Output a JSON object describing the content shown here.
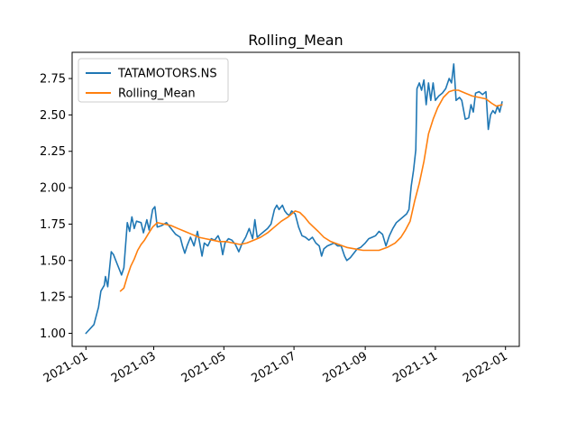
{
  "chart_data": {
    "type": "line",
    "title": "Rolling_Mean",
    "xlabel": "",
    "ylabel": "",
    "xlim": [
      "2020-12-20",
      "2022-01-13"
    ],
    "ylim": [
      0.91,
      2.93
    ],
    "x_ticks": [
      {
        "date": "2021-01-01",
        "label": "2021-01"
      },
      {
        "date": "2021-03-01",
        "label": "2021-03"
      },
      {
        "date": "2021-05-01",
        "label": "2021-05"
      },
      {
        "date": "2021-07-01",
        "label": "2021-07"
      },
      {
        "date": "2021-09-01",
        "label": "2021-09"
      },
      {
        "date": "2021-11-01",
        "label": "2021-11"
      },
      {
        "date": "2022-01-01",
        "label": "2022-01"
      }
    ],
    "y_ticks": [
      {
        "value": 1.0,
        "label": "1.00"
      },
      {
        "value": 1.25,
        "label": "1.25"
      },
      {
        "value": 1.5,
        "label": "1.50"
      },
      {
        "value": 1.75,
        "label": "1.75"
      },
      {
        "value": 2.0,
        "label": "2.00"
      },
      {
        "value": 2.25,
        "label": "2.25"
      },
      {
        "value": 2.5,
        "label": "2.50"
      },
      {
        "value": 2.75,
        "label": "2.75"
      }
    ],
    "grid": false,
    "legend_position": "upper-left",
    "series": [
      {
        "name": "TATAMOTORS.NS",
        "color": "#1f77b4",
        "points": [
          [
            "2021-01-01",
            1.0
          ],
          [
            "2021-01-08",
            1.06
          ],
          [
            "2021-01-12",
            1.18
          ],
          [
            "2021-01-14",
            1.29
          ],
          [
            "2021-01-17",
            1.33
          ],
          [
            "2021-01-18",
            1.39
          ],
          [
            "2021-01-20",
            1.32
          ],
          [
            "2021-01-23",
            1.56
          ],
          [
            "2021-01-25",
            1.54
          ],
          [
            "2021-01-28",
            1.48
          ],
          [
            "2021-01-31",
            1.42
          ],
          [
            "2021-02-01",
            1.4
          ],
          [
            "2021-02-03",
            1.45
          ],
          [
            "2021-02-06",
            1.76
          ],
          [
            "2021-02-08",
            1.7
          ],
          [
            "2021-02-10",
            1.8
          ],
          [
            "2021-02-12",
            1.72
          ],
          [
            "2021-02-14",
            1.77
          ],
          [
            "2021-02-18",
            1.76
          ],
          [
            "2021-02-20",
            1.69
          ],
          [
            "2021-02-23",
            1.78
          ],
          [
            "2021-02-25",
            1.71
          ],
          [
            "2021-02-28",
            1.85
          ],
          [
            "2021-03-02",
            1.87
          ],
          [
            "2021-03-04",
            1.73
          ],
          [
            "2021-03-08",
            1.74
          ],
          [
            "2021-03-12",
            1.76
          ],
          [
            "2021-03-16",
            1.72
          ],
          [
            "2021-03-20",
            1.68
          ],
          [
            "2021-03-24",
            1.66
          ],
          [
            "2021-03-26",
            1.6
          ],
          [
            "2021-03-28",
            1.55
          ],
          [
            "2021-03-30",
            1.6
          ],
          [
            "2021-04-02",
            1.66
          ],
          [
            "2021-04-05",
            1.6
          ],
          [
            "2021-04-08",
            1.7
          ],
          [
            "2021-04-10",
            1.62
          ],
          [
            "2021-04-12",
            1.53
          ],
          [
            "2021-04-14",
            1.62
          ],
          [
            "2021-04-17",
            1.6
          ],
          [
            "2021-04-20",
            1.65
          ],
          [
            "2021-04-23",
            1.64
          ],
          [
            "2021-04-26",
            1.67
          ],
          [
            "2021-04-28",
            1.63
          ],
          [
            "2021-04-30",
            1.54
          ],
          [
            "2021-05-02",
            1.62
          ],
          [
            "2021-05-05",
            1.65
          ],
          [
            "2021-05-08",
            1.64
          ],
          [
            "2021-05-11",
            1.61
          ],
          [
            "2021-05-14",
            1.56
          ],
          [
            "2021-05-17",
            1.62
          ],
          [
            "2021-05-20",
            1.66
          ],
          [
            "2021-05-23",
            1.72
          ],
          [
            "2021-05-26",
            1.65
          ],
          [
            "2021-05-28",
            1.78
          ],
          [
            "2021-05-30",
            1.66
          ],
          [
            "2021-06-02",
            1.68
          ],
          [
            "2021-06-05",
            1.7
          ],
          [
            "2021-06-08",
            1.72
          ],
          [
            "2021-06-11",
            1.75
          ],
          [
            "2021-06-14",
            1.85
          ],
          [
            "2021-06-16",
            1.88
          ],
          [
            "2021-06-18",
            1.85
          ],
          [
            "2021-06-21",
            1.88
          ],
          [
            "2021-06-23",
            1.84
          ],
          [
            "2021-06-25",
            1.82
          ],
          [
            "2021-06-27",
            1.81
          ],
          [
            "2021-06-29",
            1.84
          ],
          [
            "2021-07-02",
            1.82
          ],
          [
            "2021-07-05",
            1.73
          ],
          [
            "2021-07-08",
            1.67
          ],
          [
            "2021-07-11",
            1.66
          ],
          [
            "2021-07-14",
            1.64
          ],
          [
            "2021-07-17",
            1.66
          ],
          [
            "2021-07-20",
            1.62
          ],
          [
            "2021-07-23",
            1.6
          ],
          [
            "2021-07-25",
            1.53
          ],
          [
            "2021-07-27",
            1.58
          ],
          [
            "2021-07-30",
            1.6
          ],
          [
            "2021-08-02",
            1.61
          ],
          [
            "2021-08-05",
            1.62
          ],
          [
            "2021-08-08",
            1.6
          ],
          [
            "2021-08-11",
            1.6
          ],
          [
            "2021-08-14",
            1.53
          ],
          [
            "2021-08-16",
            1.5
          ],
          [
            "2021-08-19",
            1.52
          ],
          [
            "2021-08-22",
            1.55
          ],
          [
            "2021-08-25",
            1.58
          ],
          [
            "2021-08-28",
            1.59
          ],
          [
            "2021-09-01",
            1.62
          ],
          [
            "2021-09-04",
            1.65
          ],
          [
            "2021-09-07",
            1.66
          ],
          [
            "2021-09-10",
            1.67
          ],
          [
            "2021-09-13",
            1.7
          ],
          [
            "2021-09-16",
            1.68
          ],
          [
            "2021-09-19",
            1.6
          ],
          [
            "2021-09-22",
            1.67
          ],
          [
            "2021-09-25",
            1.72
          ],
          [
            "2021-09-28",
            1.76
          ],
          [
            "2021-10-01",
            1.78
          ],
          [
            "2021-10-04",
            1.8
          ],
          [
            "2021-10-07",
            1.82
          ],
          [
            "2021-10-09",
            1.85
          ],
          [
            "2021-10-11",
            2.01
          ],
          [
            "2021-10-13",
            2.12
          ],
          [
            "2021-10-15",
            2.26
          ],
          [
            "2021-10-16",
            2.68
          ],
          [
            "2021-10-18",
            2.72
          ],
          [
            "2021-10-20",
            2.67
          ],
          [
            "2021-10-22",
            2.74
          ],
          [
            "2021-10-24",
            2.57
          ],
          [
            "2021-10-26",
            2.72
          ],
          [
            "2021-10-28",
            2.6
          ],
          [
            "2021-10-30",
            2.72
          ],
          [
            "2021-11-01",
            2.6
          ],
          [
            "2021-11-04",
            2.63
          ],
          [
            "2021-11-07",
            2.65
          ],
          [
            "2021-11-10",
            2.68
          ],
          [
            "2021-11-13",
            2.75
          ],
          [
            "2021-11-15",
            2.72
          ],
          [
            "2021-11-17",
            2.85
          ],
          [
            "2021-11-19",
            2.6
          ],
          [
            "2021-11-22",
            2.62
          ],
          [
            "2021-11-24",
            2.6
          ],
          [
            "2021-11-27",
            2.47
          ],
          [
            "2021-11-30",
            2.48
          ],
          [
            "2021-12-02",
            2.57
          ],
          [
            "2021-12-04",
            2.52
          ],
          [
            "2021-12-06",
            2.65
          ],
          [
            "2021-12-09",
            2.66
          ],
          [
            "2021-12-12",
            2.64
          ],
          [
            "2021-12-15",
            2.66
          ],
          [
            "2021-12-17",
            2.4
          ],
          [
            "2021-12-19",
            2.5
          ],
          [
            "2021-12-21",
            2.53
          ],
          [
            "2021-12-23",
            2.51
          ],
          [
            "2021-12-25",
            2.56
          ],
          [
            "2021-12-27",
            2.52
          ],
          [
            "2021-12-29",
            2.59
          ]
        ]
      },
      {
        "name": "Rolling_Mean",
        "color": "#ff7f0e",
        "points": [
          [
            "2021-01-31",
            1.29
          ],
          [
            "2021-02-03",
            1.31
          ],
          [
            "2021-02-06",
            1.39
          ],
          [
            "2021-02-09",
            1.46
          ],
          [
            "2021-02-12",
            1.51
          ],
          [
            "2021-02-15",
            1.57
          ],
          [
            "2021-02-18",
            1.61
          ],
          [
            "2021-02-21",
            1.64
          ],
          [
            "2021-02-24",
            1.68
          ],
          [
            "2021-02-28",
            1.73
          ],
          [
            "2021-03-04",
            1.76
          ],
          [
            "2021-03-10",
            1.75
          ],
          [
            "2021-03-16",
            1.74
          ],
          [
            "2021-03-22",
            1.72
          ],
          [
            "2021-03-28",
            1.7
          ],
          [
            "2021-04-03",
            1.68
          ],
          [
            "2021-04-09",
            1.66
          ],
          [
            "2021-04-15",
            1.65
          ],
          [
            "2021-04-21",
            1.64
          ],
          [
            "2021-04-27",
            1.63
          ],
          [
            "2021-05-03",
            1.63
          ],
          [
            "2021-05-09",
            1.62
          ],
          [
            "2021-05-15",
            1.61
          ],
          [
            "2021-05-21",
            1.62
          ],
          [
            "2021-05-27",
            1.64
          ],
          [
            "2021-06-02",
            1.66
          ],
          [
            "2021-06-08",
            1.69
          ],
          [
            "2021-06-14",
            1.73
          ],
          [
            "2021-06-20",
            1.77
          ],
          [
            "2021-06-26",
            1.8
          ],
          [
            "2021-07-02",
            1.84
          ],
          [
            "2021-07-06",
            1.83
          ],
          [
            "2021-07-10",
            1.8
          ],
          [
            "2021-07-14",
            1.76
          ],
          [
            "2021-07-18",
            1.73
          ],
          [
            "2021-07-22",
            1.7
          ],
          [
            "2021-07-27",
            1.66
          ],
          [
            "2021-08-02",
            1.63
          ],
          [
            "2021-08-09",
            1.61
          ],
          [
            "2021-08-16",
            1.59
          ],
          [
            "2021-08-23",
            1.58
          ],
          [
            "2021-08-30",
            1.57
          ],
          [
            "2021-09-06",
            1.57
          ],
          [
            "2021-09-13",
            1.57
          ],
          [
            "2021-09-20",
            1.59
          ],
          [
            "2021-09-27",
            1.62
          ],
          [
            "2021-10-02",
            1.66
          ],
          [
            "2021-10-06",
            1.71
          ],
          [
            "2021-10-10",
            1.77
          ],
          [
            "2021-10-14",
            1.91
          ],
          [
            "2021-10-18",
            2.03
          ],
          [
            "2021-10-22",
            2.18
          ],
          [
            "2021-10-26",
            2.37
          ],
          [
            "2021-10-30",
            2.47
          ],
          [
            "2021-11-03",
            2.55
          ],
          [
            "2021-11-08",
            2.62
          ],
          [
            "2021-11-13",
            2.66
          ],
          [
            "2021-11-17",
            2.67
          ],
          [
            "2021-11-21",
            2.67
          ],
          [
            "2021-11-27",
            2.65
          ],
          [
            "2021-12-03",
            2.63
          ],
          [
            "2021-12-09",
            2.62
          ],
          [
            "2021-12-15",
            2.61
          ],
          [
            "2021-12-20",
            2.58
          ],
          [
            "2021-12-24",
            2.56
          ],
          [
            "2021-12-29",
            2.57
          ]
        ]
      }
    ]
  }
}
